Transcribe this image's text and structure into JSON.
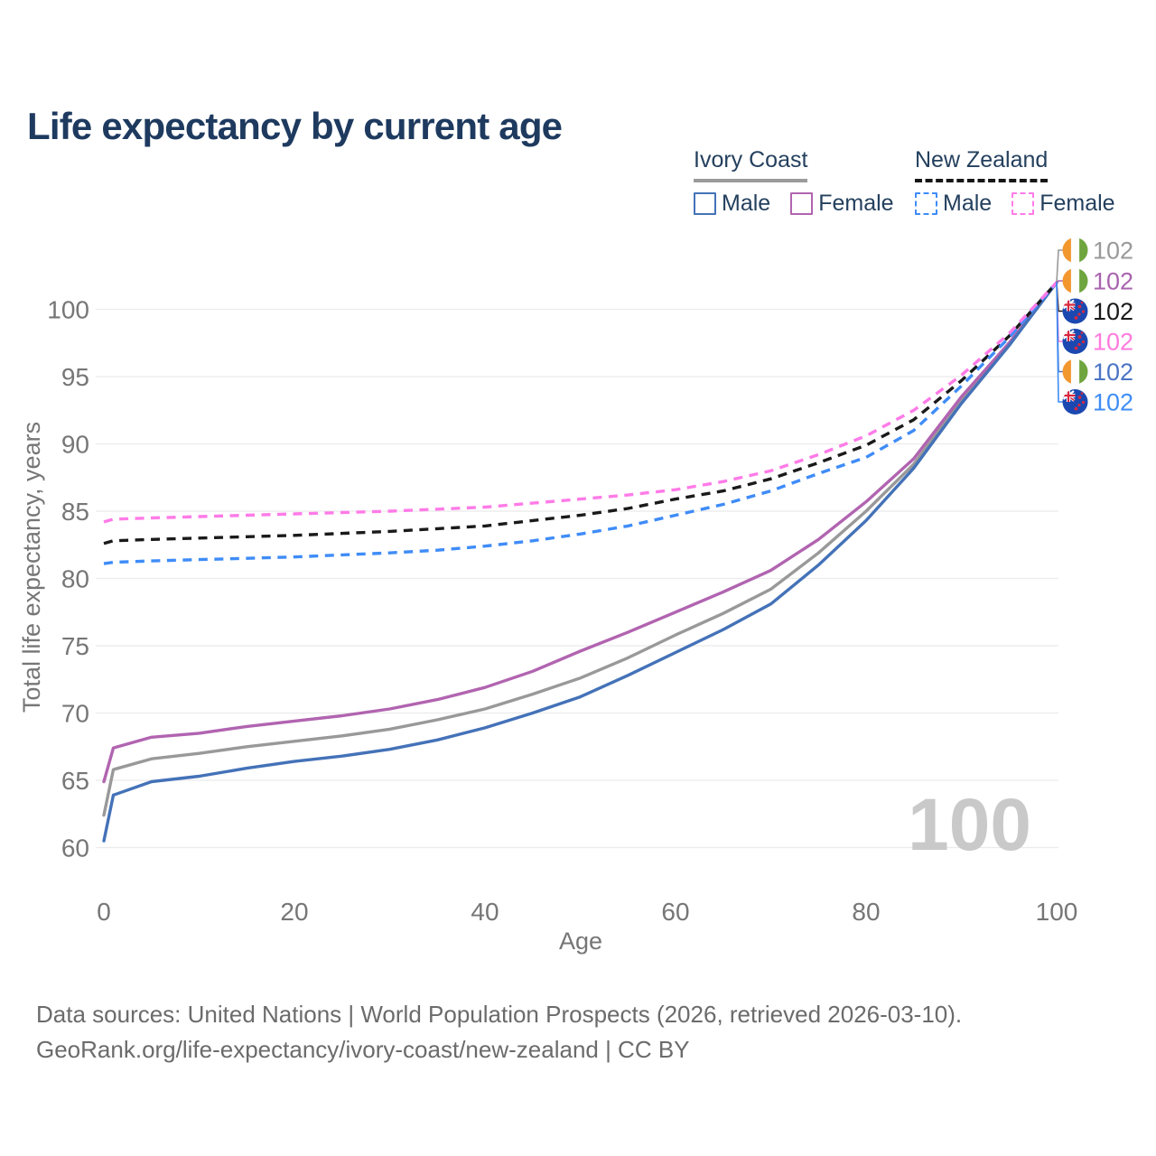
{
  "title": "Life expectancy by current age",
  "watermark": "100",
  "legend": {
    "groups": [
      {
        "name": "Ivory Coast",
        "line_style": "solid",
        "underline_color": "#9B9B9B",
        "items": [
          {
            "label": "Male",
            "color": "#4472B8"
          },
          {
            "label": "Female",
            "color": "#B164B0"
          }
        ]
      },
      {
        "name": "New Zealand",
        "line_style": "dashed",
        "underline_color": "#161616",
        "items": [
          {
            "label": "Male",
            "color": "#3F8CF8"
          },
          {
            "label": "Female",
            "color": "#FF7BE8"
          }
        ]
      }
    ]
  },
  "chart_data": {
    "type": "line",
    "title": "Life expectancy by current age",
    "xlabel": "Age",
    "ylabel": "Total life expectancy, years",
    "xlim": [
      0,
      100
    ],
    "ylim": [
      58.5,
      103.5
    ],
    "x_ticks": [
      0,
      20,
      40,
      60,
      80,
      100
    ],
    "y_ticks": [
      60,
      65,
      70,
      75,
      80,
      85,
      90,
      95,
      100
    ],
    "grid": "horizontal",
    "legend_position": "top-right",
    "x": [
      0,
      1,
      5,
      10,
      15,
      20,
      25,
      30,
      35,
      40,
      45,
      50,
      55,
      60,
      65,
      70,
      75,
      80,
      85,
      90,
      95,
      100
    ],
    "series": [
      {
        "name": "Ivory Coast Both sexes",
        "country": "Ivory Coast",
        "sex": "both",
        "style": "solid",
        "color": "#999999",
        "values": [
          62.4,
          65.8,
          66.6,
          67.0,
          67.5,
          67.9,
          68.3,
          68.8,
          69.5,
          70.3,
          71.4,
          72.6,
          74.1,
          75.8,
          77.4,
          79.2,
          81.9,
          85.0,
          88.5,
          93.2,
          97.4,
          102
        ]
      },
      {
        "name": "Ivory Coast Female",
        "country": "Ivory Coast",
        "sex": "female",
        "style": "solid",
        "color": "#B164B0",
        "values": [
          64.9,
          67.4,
          68.2,
          68.5,
          69.0,
          69.4,
          69.8,
          70.3,
          71.0,
          71.9,
          73.1,
          74.6,
          76.0,
          77.5,
          79.0,
          80.6,
          82.9,
          85.7,
          88.9,
          93.5,
          97.5,
          102
        ]
      },
      {
        "name": "Ivory Coast Male",
        "country": "Ivory Coast",
        "sex": "male",
        "style": "solid",
        "color": "#4472B8",
        "values": [
          60.5,
          63.9,
          64.9,
          65.3,
          65.9,
          66.4,
          66.8,
          67.3,
          68.0,
          68.9,
          70.0,
          71.2,
          72.8,
          74.5,
          76.2,
          78.1,
          81.0,
          84.3,
          88.2,
          93.0,
          97.3,
          102
        ]
      },
      {
        "name": "New Zealand Both sexes",
        "country": "New Zealand",
        "sex": "both",
        "style": "dashed",
        "color": "#1A1A1A",
        "values": [
          82.6,
          82.8,
          82.9,
          83.0,
          83.1,
          83.2,
          83.35,
          83.5,
          83.7,
          83.9,
          84.3,
          84.7,
          85.2,
          85.9,
          86.5,
          87.4,
          88.6,
          89.9,
          91.8,
          94.7,
          98.0,
          102
        ]
      },
      {
        "name": "New Zealand Male",
        "country": "New Zealand",
        "sex": "male",
        "style": "dashed",
        "color": "#3F8CF8",
        "values": [
          81.1,
          81.2,
          81.3,
          81.4,
          81.5,
          81.6,
          81.75,
          81.9,
          82.1,
          82.4,
          82.8,
          83.3,
          83.9,
          84.7,
          85.5,
          86.5,
          87.8,
          89.0,
          91.0,
          94.3,
          97.9,
          102
        ]
      },
      {
        "name": "New Zealand Female",
        "country": "New Zealand",
        "sex": "female",
        "style": "dashed",
        "color": "#FF7BE8",
        "values": [
          84.2,
          84.4,
          84.5,
          84.6,
          84.7,
          84.8,
          84.9,
          85.0,
          85.15,
          85.3,
          85.6,
          85.9,
          86.2,
          86.6,
          87.2,
          88.0,
          89.2,
          90.6,
          92.5,
          95.1,
          98.2,
          102
        ]
      }
    ],
    "end_labels": [
      {
        "flag": "ivory-coast",
        "text": "102",
        "color": "#999999"
      },
      {
        "flag": "ivory-coast",
        "text": "102",
        "color": "#A963AE"
      },
      {
        "flag": "new-zealand",
        "text": "102",
        "color": "#1A1A1A"
      },
      {
        "flag": "new-zealand",
        "text": "102",
        "color": "#FF7BDE"
      },
      {
        "flag": "ivory-coast",
        "text": "102",
        "color": "#4A74C4"
      },
      {
        "flag": "new-zealand",
        "text": "102",
        "color": "#3F8DF5"
      }
    ]
  },
  "footer": {
    "line1": "Data sources: United Nations | World Population Prospects (2026, retrieved 2026-03-10).",
    "line2": "GeoRank.org/life-expectancy/ivory-coast/new-zealand | CC BY"
  }
}
